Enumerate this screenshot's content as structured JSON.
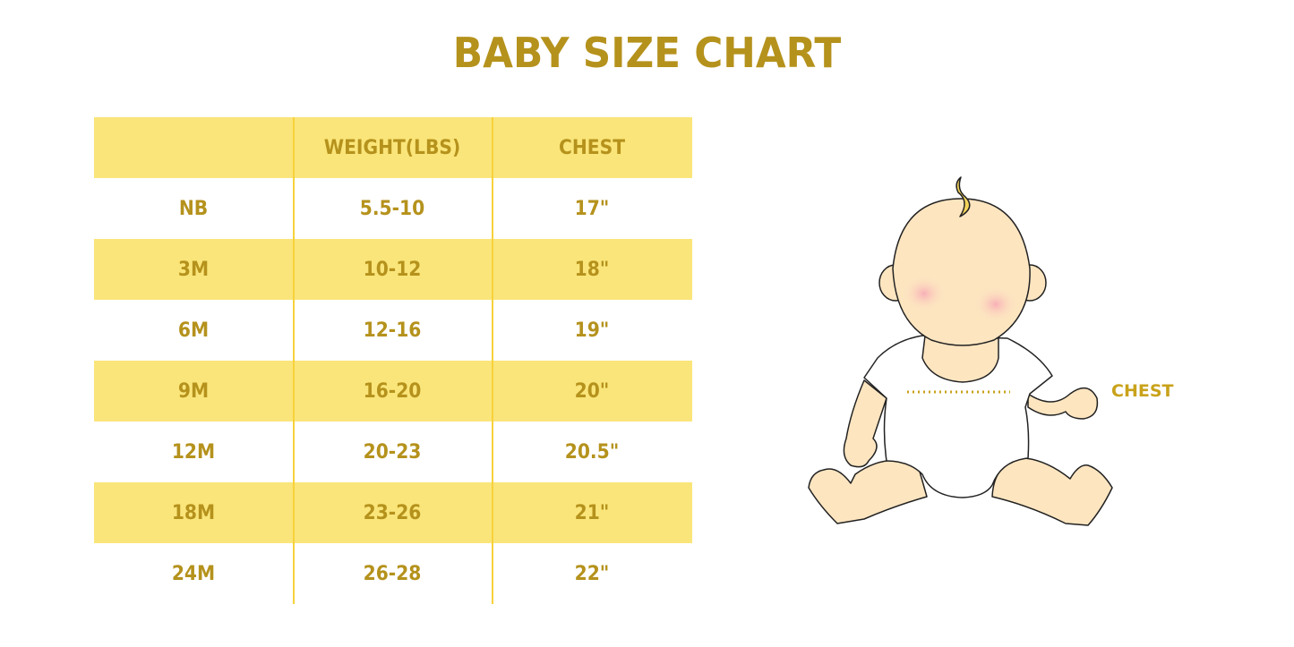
{
  "title": "BABY SIZE CHART",
  "table": {
    "headers": [
      "",
      "WEIGHT(LBS)",
      "CHEST"
    ],
    "rows": [
      [
        "NB",
        "5.5-10",
        "17\""
      ],
      [
        "3M",
        "10-12",
        "18\""
      ],
      [
        "6M",
        "12-16",
        "19\""
      ],
      [
        "9M",
        "16-20",
        "20\""
      ],
      [
        "12M",
        "20-23",
        "20.5\""
      ],
      [
        "18M",
        "23-26",
        "21\""
      ],
      [
        "24M",
        "26-28",
        "22\""
      ]
    ]
  },
  "illustration": {
    "chest_label": "CHEST"
  },
  "colors": {
    "accent_text": "#B5921C",
    "row_highlight": "#FAE57A",
    "divider": "#F7D23A",
    "skin": "#FDE5C0",
    "cheek": "#F7B8C0",
    "hair": "#F5D55A"
  }
}
